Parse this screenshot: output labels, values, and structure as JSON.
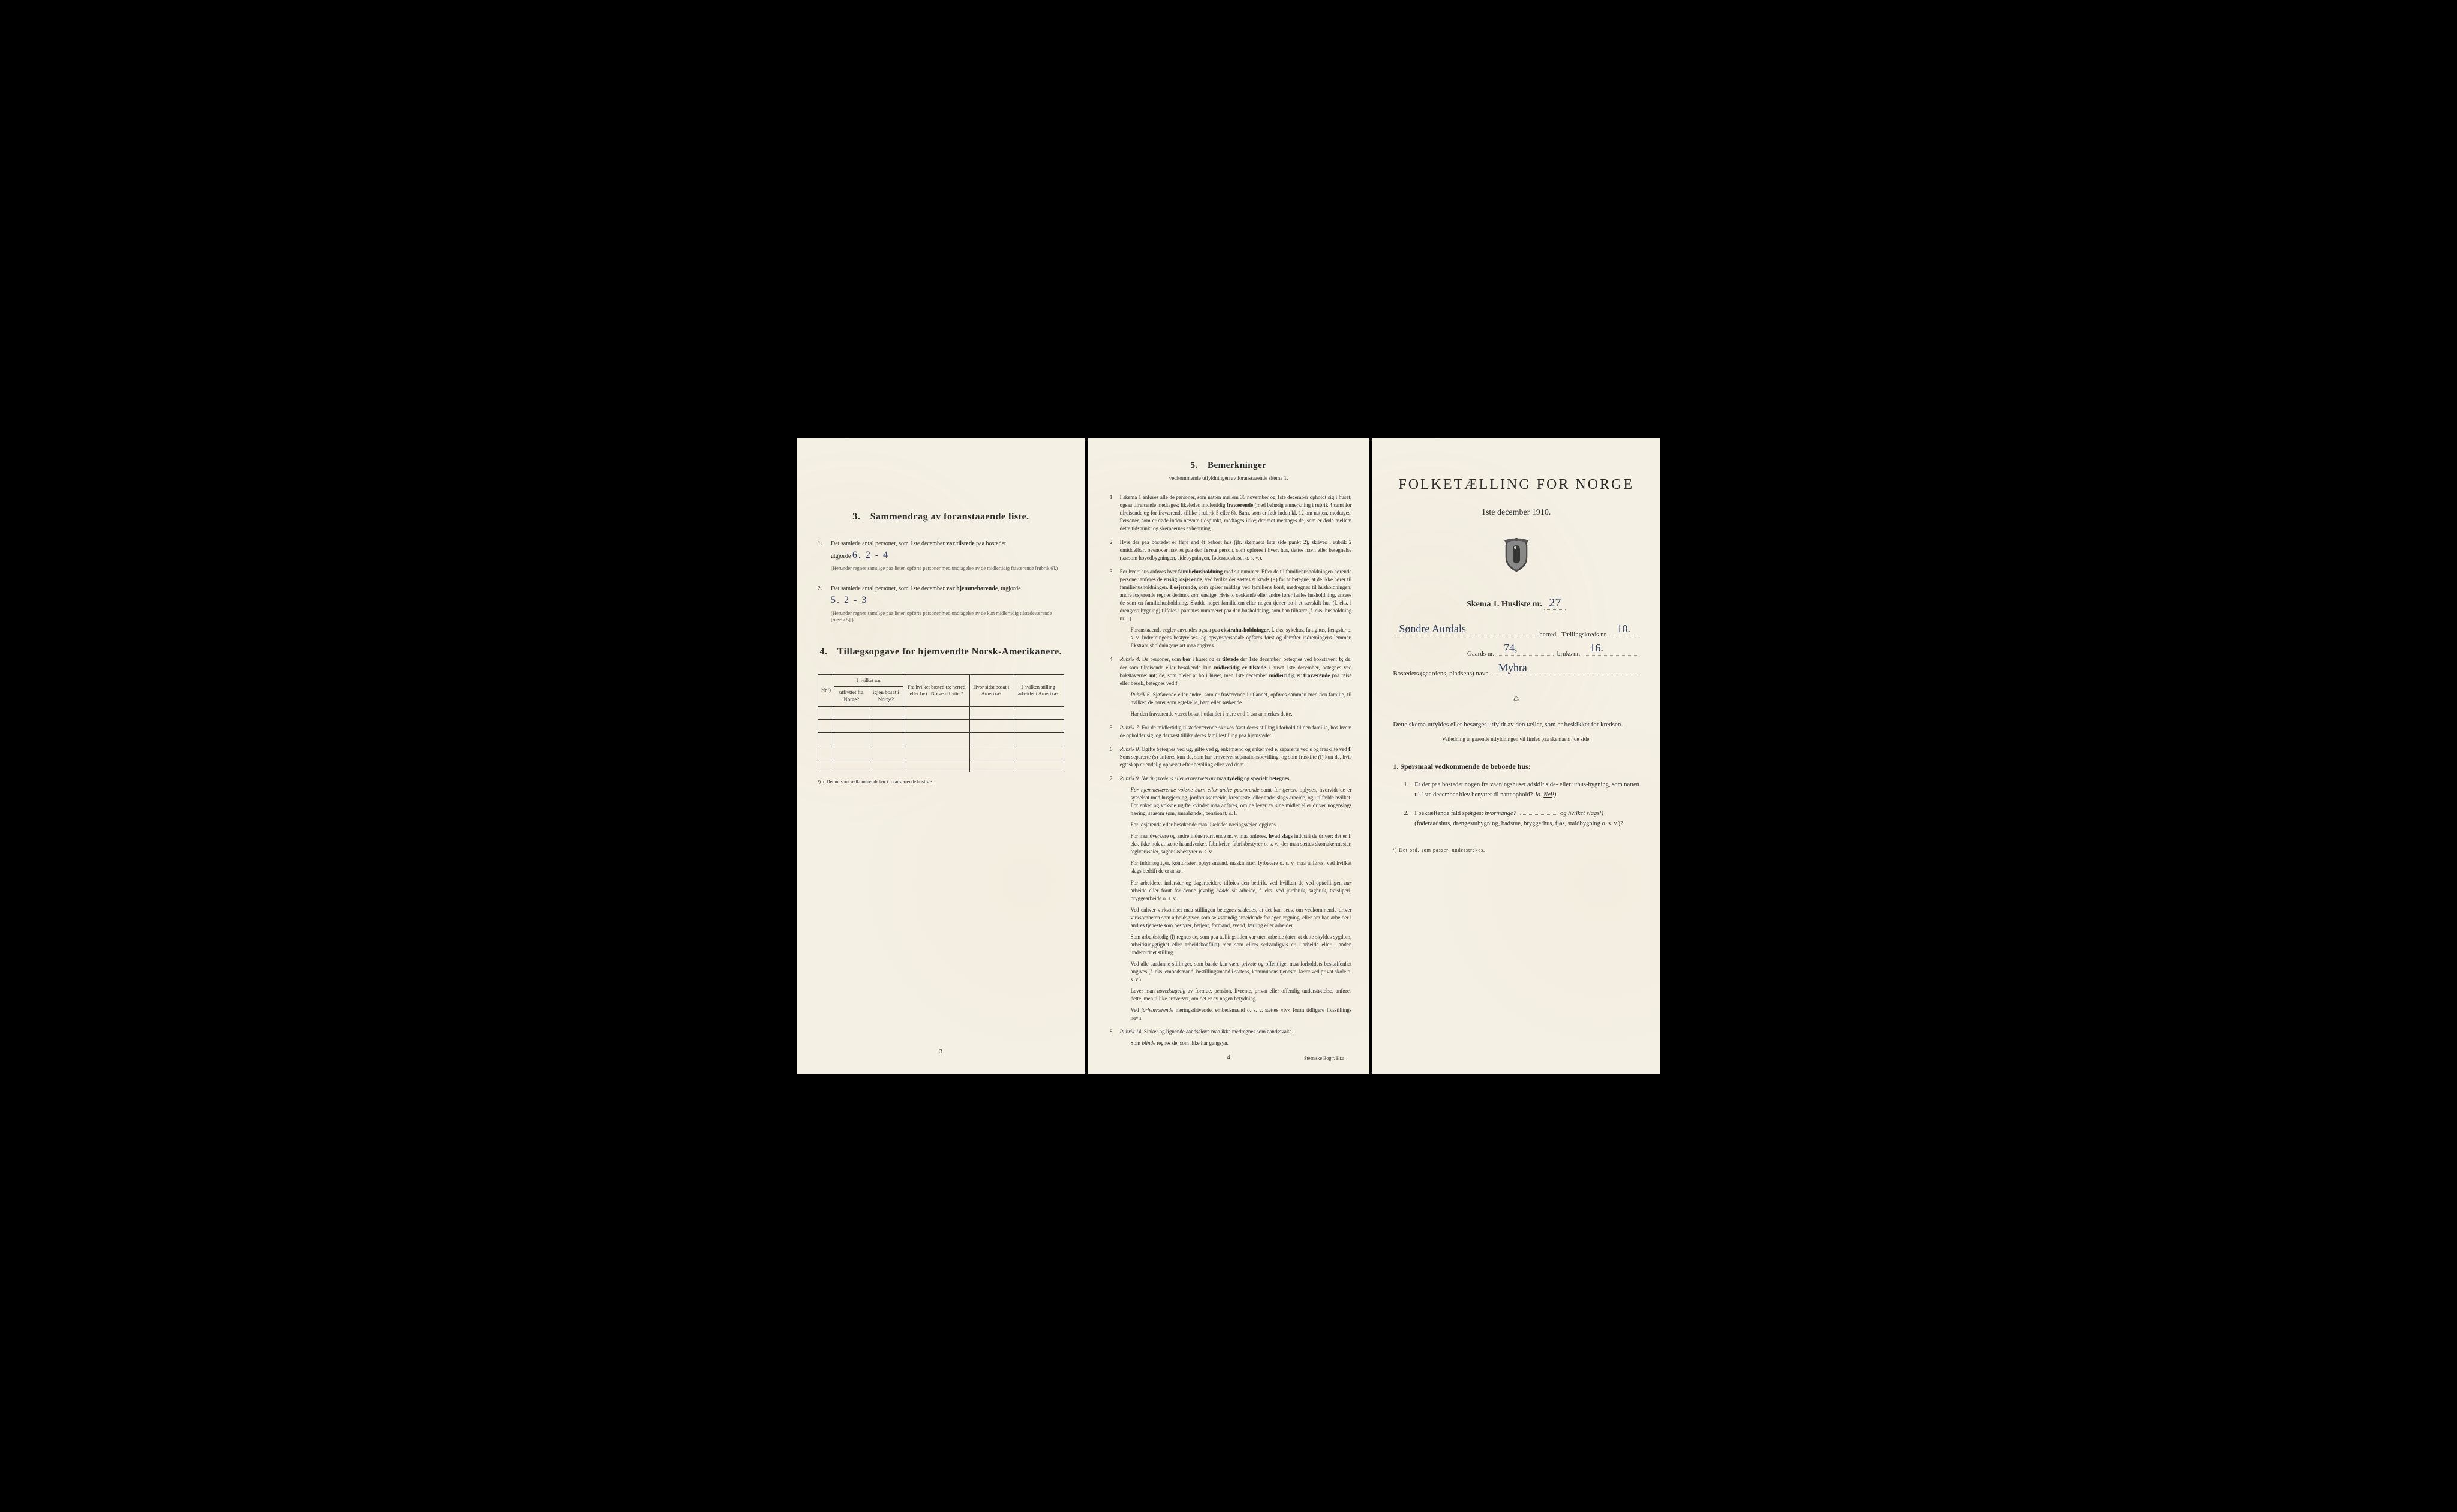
{
  "page1": {
    "section3_title": "Sammendrag av foranstaaende liste.",
    "section3_num": "3.",
    "item1_num": "1.",
    "item1_text_a": "Det samlede antal personer, som 1ste december",
    "item1_bold": "var tilstede",
    "item1_text_b": "paa bostedet,",
    "item1_text_c": "utgjorde",
    "item1_value": "6.  2 - 4",
    "item1_fine": "(Herunder regnes samtlige paa listen opførte personer med undtagelse av de midlertidig fraværende [rubrik 6].)",
    "item2_num": "2.",
    "item2_text_a": "Det samlede antal personer, som 1ste december",
    "item2_bold": "var hjemmehørende",
    "item2_text_b": ", utgjorde",
    "item2_value": "5.  2 - 3",
    "item2_fine": "(Herunder regnes samtlige paa listen opførte personer med undtagelse av de kun midlertidig tilstedeværende [rubrik 5].)",
    "section4_title": "Tillægsopgave for hjemvendte Norsk-Amerikanere.",
    "section4_num": "4.",
    "table": {
      "sup_header": "I hvilket aar",
      "col_nr": "Nr.¹)",
      "col_utf": "utflyttet fra Norge?",
      "col_igjen": "igjen bosat i Norge?",
      "col_bosted": "Fra hvilket bosted (ɔ: herred eller by) i Norge utflyttet?",
      "col_sidst": "Hvor sidst bosat i Amerika?",
      "col_stilling": "I hvilken stilling arbeidet i Amerika?",
      "blank_rows": 5
    },
    "table_footnote": "¹)  ɔ: Det nr. som vedkommende har i foranstaaende husliste.",
    "page_number": "3"
  },
  "page2": {
    "title_num": "5.",
    "title": "Bemerkninger",
    "subtitle": "vedkommende utfyldningen av foranstaaende skema 1.",
    "remarks": [
      {
        "n": "1.",
        "t": "I skema 1 anføres alle de personer, som natten mellem 30 november og 1ste december opholdt sig i huset; ogsaa tilreisende medtages; likeledes midlertidig <strong>fraværende</strong> (med behørig anmerkning i rubrik 4 samt for tilreisende og for fraværende tillike i rubrik 5 eller 6). Barn, som er født inden kl. 12 om natten, medtages. Personer, som er døde inden nævnte tidspunkt, medtages ikke; derimot medtages de, som er døde mellem dette tidspunkt og skemaernes avhentning."
      },
      {
        "n": "2.",
        "t": "Hvis der paa bostedet er flere end ét beboet hus (jfr. skemaets 1ste side punkt 2), skrives i rubrik 2 umiddelbart ovenover navnet paa den <strong>første</strong> person, som opføres i hvert hus, dettes navn eller betegnelse (saasom hovedbygningen, sidebygningen, føderaadshuset o. s. v.)."
      },
      {
        "n": "3.",
        "t": "For hvert hus anføres hver <strong>familiehusholdning</strong> med sit nummer. Efter de til familiehusholdningen hørende personer anføres de <strong>enslig losjerende</strong>, ved hvilke der sættes et kryds (×) for at betegne, at de ikke hører til familiehusholdningen. <strong>Losjerende</strong>, som spiser middag ved familiens bord, medregnes til husholdningen; andre losjerende regnes derimot som enslige. Hvis to søskende eller andre fører fælles husholdning, ansees de som en familiehusholdning. Skulde noget familielem eller nogen tjener bo i et særskilt hus (f. eks. i drengestubygning) tilføies i parentes nummeret paa den husholdning, som han tilhører (f. eks. husholdning nr. 1).",
        "p2": "Foranstaaende regler anvendes ogsaa paa <strong>ekstrahusholdninger</strong>, f. eks. sykehus, fattighus, fængsler o. s. v. Indretningens bestyrelses- og opsynspersonale opføres først og derefter indretningens lemmer. Ekstrahusholdningens art maa angives."
      },
      {
        "n": "4.",
        "t": "<em>Rubrik 4.</em> De personer, som <strong>bor</strong> i huset og er <strong>tilstede</strong> der 1ste december, betegnes ved bokstaven: <strong>b</strong>; de, der som tilreisende eller besøkende kun <strong>midlertidig er tilstede</strong> i huset 1ste december, betegnes ved bokstaverne: <strong>mt</strong>; de, som pleier at bo i huset, men 1ste december <strong>midlertidig er fraværende</strong> paa reise eller besøk, betegnes ved <strong>f</strong>.",
        "p2": "<em>Rubrik 6.</em> Sjøfarende eller andre, som er fraværende i utlandet, opføres sammen med den familie, til hvilken de hører som egtefælle, barn eller søskende.",
        "p3": "Har den fraværende været bosat i utlandet i mere end 1 aar anmerkes dette."
      },
      {
        "n": "5.",
        "t": "<em>Rubrik 7.</em> For de midlertidig tilstedeværende skrives først deres stilling i forhold til den familie, hos hvem de opholder sig, og dernæst tillike deres familiestilling paa hjemstedet."
      },
      {
        "n": "6.",
        "t": "<em>Rubrik 8.</em> Ugifte betegnes ved <strong>ug</strong>, gifte ved <strong>g</strong>, enkemænd og enker ved <strong>e</strong>, separerte ved <strong>s</strong> og fraskilte ved <strong>f</strong>. Som separerte (s) anføres kun de, som har erhvervet separationsbevilling, og som fraskilte (f) kun de, hvis egteskap er endelig ophævet efter bevilling eller ved dom."
      },
      {
        "n": "7.",
        "t": "<em>Rubrik 9. Næringsveiens eller erhvervets art</em> maa <strong>tydelig og specielt betegnes.</strong>",
        "p2": "<em>For hjemmeværende voksne barn eller andre paarørende</em> samt for <em>tjenere</em> oplyses, hvorvidt de er sysselsat med husgjerning, jordbruksarbeide, kreaturstel eller andet slags arbeide, og i tilfælde hvilket. For enker og voksne ugifte kvinder maa anføres, om de lever av sine midler eller driver nogenslags næring, saasom søm, smaahandel, pensionat, o. l.",
        "p3": "For losjerende eller besøkende maa likeledes næringsveien opgives.",
        "p4": "For haandverkere og andre industridrivende m. v. maa anføres, <strong>hvad slags</strong> industri de driver; det er f. eks. ikke nok at sætte haandverker, fabrikeier, fabrikbestyrer o. s. v.; der maa sættes skomakermester, teglverkseier, sagbruksbestyrer o. s. v.",
        "p5": "For fuldmægtiger, kontorister, opsynsmænd, maskinister, fyrbøtere o. s. v. maa anføres, ved hvilket slags bedrift de er ansat.",
        "p6": "For arbeidere, inderster og dagarbeidere tilføies den bedrift, ved hvilken de ved optællingen <em>har</em> arbeide eller forut for denne jevnlig <em>hadde</em> sit arbeide, f. eks. ved jordbruk, sagbruk, træsliperi, bryggearbeide o. s. v.",
        "p7": "Ved enhver virksomhet maa stillingen betegnes saaledes, at det kan sees, om vedkommende driver virksomheten som arbeidsgiver, som selvstændig arbeidende for egen regning, eller om han arbeider i andres tjeneste som bestyrer, betjent, formand, svend, lærling eller arbeider.",
        "p8": "Som arbeidsledig (l) regnes de, som paa tællingstiden var uten arbeide (uten at dette skyldes sygdom, arbeidsudygtighet eller arbeidskonflikt) men som ellers sedvanligvis er i arbeide eller i anden underordnet stilling.",
        "p9": "Ved alle saadanne stillinger, som baade kan være private og offentlige, maa forholdets beskaffenhet angives (f. eks. embedsmand, bestillingsmand i statens, kommunens tjeneste, lærer ved privat skole o. s. v.).",
        "p10": "Lever man <em>hovedsagelig</em> av formue, pension, livrente, privat eller offentlig understøttelse, anføres dette, men tillike erhvervet, om det er av nogen betydning.",
        "p11": "Ved <em>forhenværende</em> næringsdrivende, embedsmænd o. s. v. sættes «fv» foran tidligere livsstillings navn."
      },
      {
        "n": "8.",
        "t": "<em>Rubrik 14.</em> Sinker og lignende aandssløve maa ikke medregnes som aandssvake.",
        "p2": "Som <em>blinde</em> regnes de, som ikke har gangsyn."
      }
    ],
    "page_number": "4",
    "printer": "Steen'ske Bogtr.  Kr.a."
  },
  "page3": {
    "main_title": "FOLKETÆLLING FOR NORGE",
    "date": "1ste december 1910.",
    "skema_label": "Skema 1.  Husliste nr.",
    "husliste_nr": "27",
    "herred_value": "Søndre Aurdals",
    "herred_label": "herred.",
    "tkreds_label": "Tællingskreds nr.",
    "tkreds_value": "10.",
    "gaards_label": "Gaards nr.",
    "gaards_value": "74,",
    "readse": "/",
    "bruks_label": "bruks nr.",
    "bruks_value": "16.",
    "bosted_label": "Bostedets (gaardens, pladsens) navn",
    "bosted_value": "Myhra",
    "instruction": "Dette skema utfyldes eller besørges utfyldt av den tæller, som er beskikket for kredsen.",
    "instruction_sub": "Veiledning angaaende utfyldningen vil findes paa skemaets 4de side.",
    "q_heading": "1. Spørsmaal vedkommende de beboede hus:",
    "q1_num": "1.",
    "q1_text": "Er der paa bostedet nogen fra vaaningshuset adskilt side- eller uthus-bygning, som natten til 1ste december blev benyttet til natteophold?",
    "q1_ja": "Ja.",
    "q1_nei": "Nei",
    "q1_sup": "¹).",
    "q2_num": "2.",
    "q2_text_a": "I bekræftende fald spørges:",
    "q2_hvor": "hvormange?",
    "q2_og": "og hvilket slags¹)",
    "q2_text_b": "(føderaadshus, drengestubygning, badstue, bryggerhus, fjøs, staldbygning o. s. v.)?",
    "footnote": "¹)  Det ord, som passer, understrekes."
  },
  "colors": {
    "paper": "#f5f0e4",
    "ink": "#2a2a2a",
    "handwriting": "#2a3a6a",
    "background": "#000000"
  }
}
